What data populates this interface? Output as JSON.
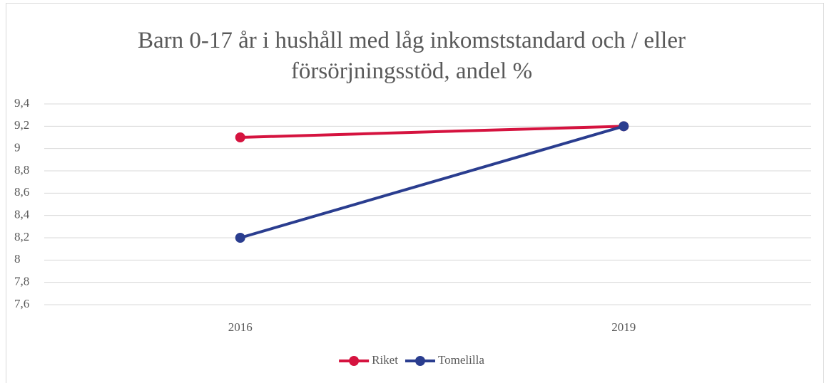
{
  "chart_data": {
    "type": "line",
    "title": "Barn 0-17 år i hushåll med låg inkomststandard  och / eller försörjningsstöd, andel %",
    "categories": [
      "2016",
      "2019"
    ],
    "series": [
      {
        "name": "Riket",
        "color": "#d5133f",
        "values": [
          9.1,
          9.2
        ]
      },
      {
        "name": "Tomelilla",
        "color": "#2a3d8f",
        "values": [
          8.2,
          9.2
        ]
      }
    ],
    "ylim": [
      7.6,
      9.4
    ],
    "yticks": [
      {
        "value": 7.6,
        "label": "7,6"
      },
      {
        "value": 7.8,
        "label": "7,8"
      },
      8,
      {
        "value": 8.2,
        "label": "8,2"
      },
      {
        "value": 8.4,
        "label": "8,4"
      },
      {
        "value": 8.6,
        "label": "8,6"
      },
      {
        "value": 8.8,
        "label": "8,8"
      },
      9,
      {
        "value": 9.2,
        "label": "9,2"
      },
      {
        "value": 9.4,
        "label": "9,4"
      }
    ],
    "grid": true,
    "legend": "bottom"
  }
}
